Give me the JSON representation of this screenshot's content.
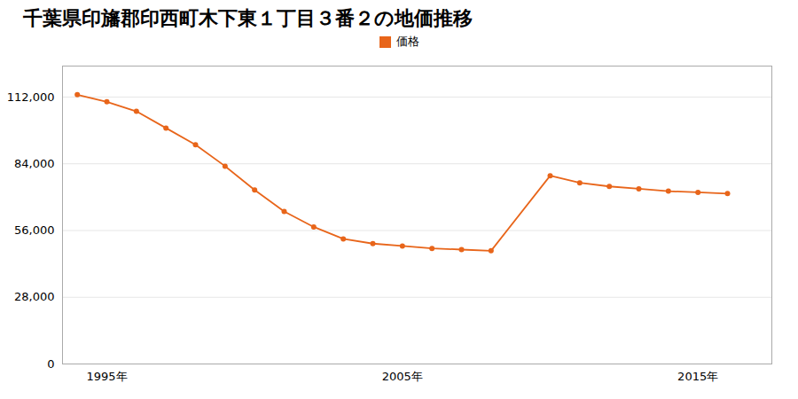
{
  "chart_data": {
    "type": "line",
    "title": "千葉県印旛郡印西町木下東１丁目３番２の地価推移",
    "x": [
      1994,
      1995,
      1996,
      1997,
      1998,
      1999,
      2000,
      2001,
      2002,
      2003,
      2004,
      2005,
      2006,
      2007,
      2008,
      2010,
      2011,
      2012,
      2013,
      2014,
      2015,
      2016
    ],
    "series": [
      {
        "name": "価格",
        "color": "#e8651a",
        "marker": "circle",
        "values": [
          113000,
          110000,
          106000,
          99000,
          92000,
          83000,
          73000,
          64000,
          57500,
          52500,
          50500,
          49500,
          48500,
          48000,
          47500,
          79000,
          76000,
          74500,
          73500,
          72500,
          72000,
          71500
        ]
      }
    ],
    "xlim": [
      1993.5,
      2017.5
    ],
    "xticks": [
      {
        "value": 1995,
        "label": "1995年"
      },
      {
        "value": 2005,
        "label": "2005年"
      },
      {
        "value": 2015,
        "label": "2015年"
      }
    ],
    "ylim": [
      0,
      125000
    ],
    "yticks": [
      0,
      {
        "value": 28000,
        "label": "28,000"
      },
      {
        "value": 56000,
        "label": "56,000"
      },
      {
        "value": 84000,
        "label": "84,000"
      },
      {
        "value": 112000,
        "label": "112,000"
      }
    ],
    "grid": true,
    "legend": "top"
  }
}
